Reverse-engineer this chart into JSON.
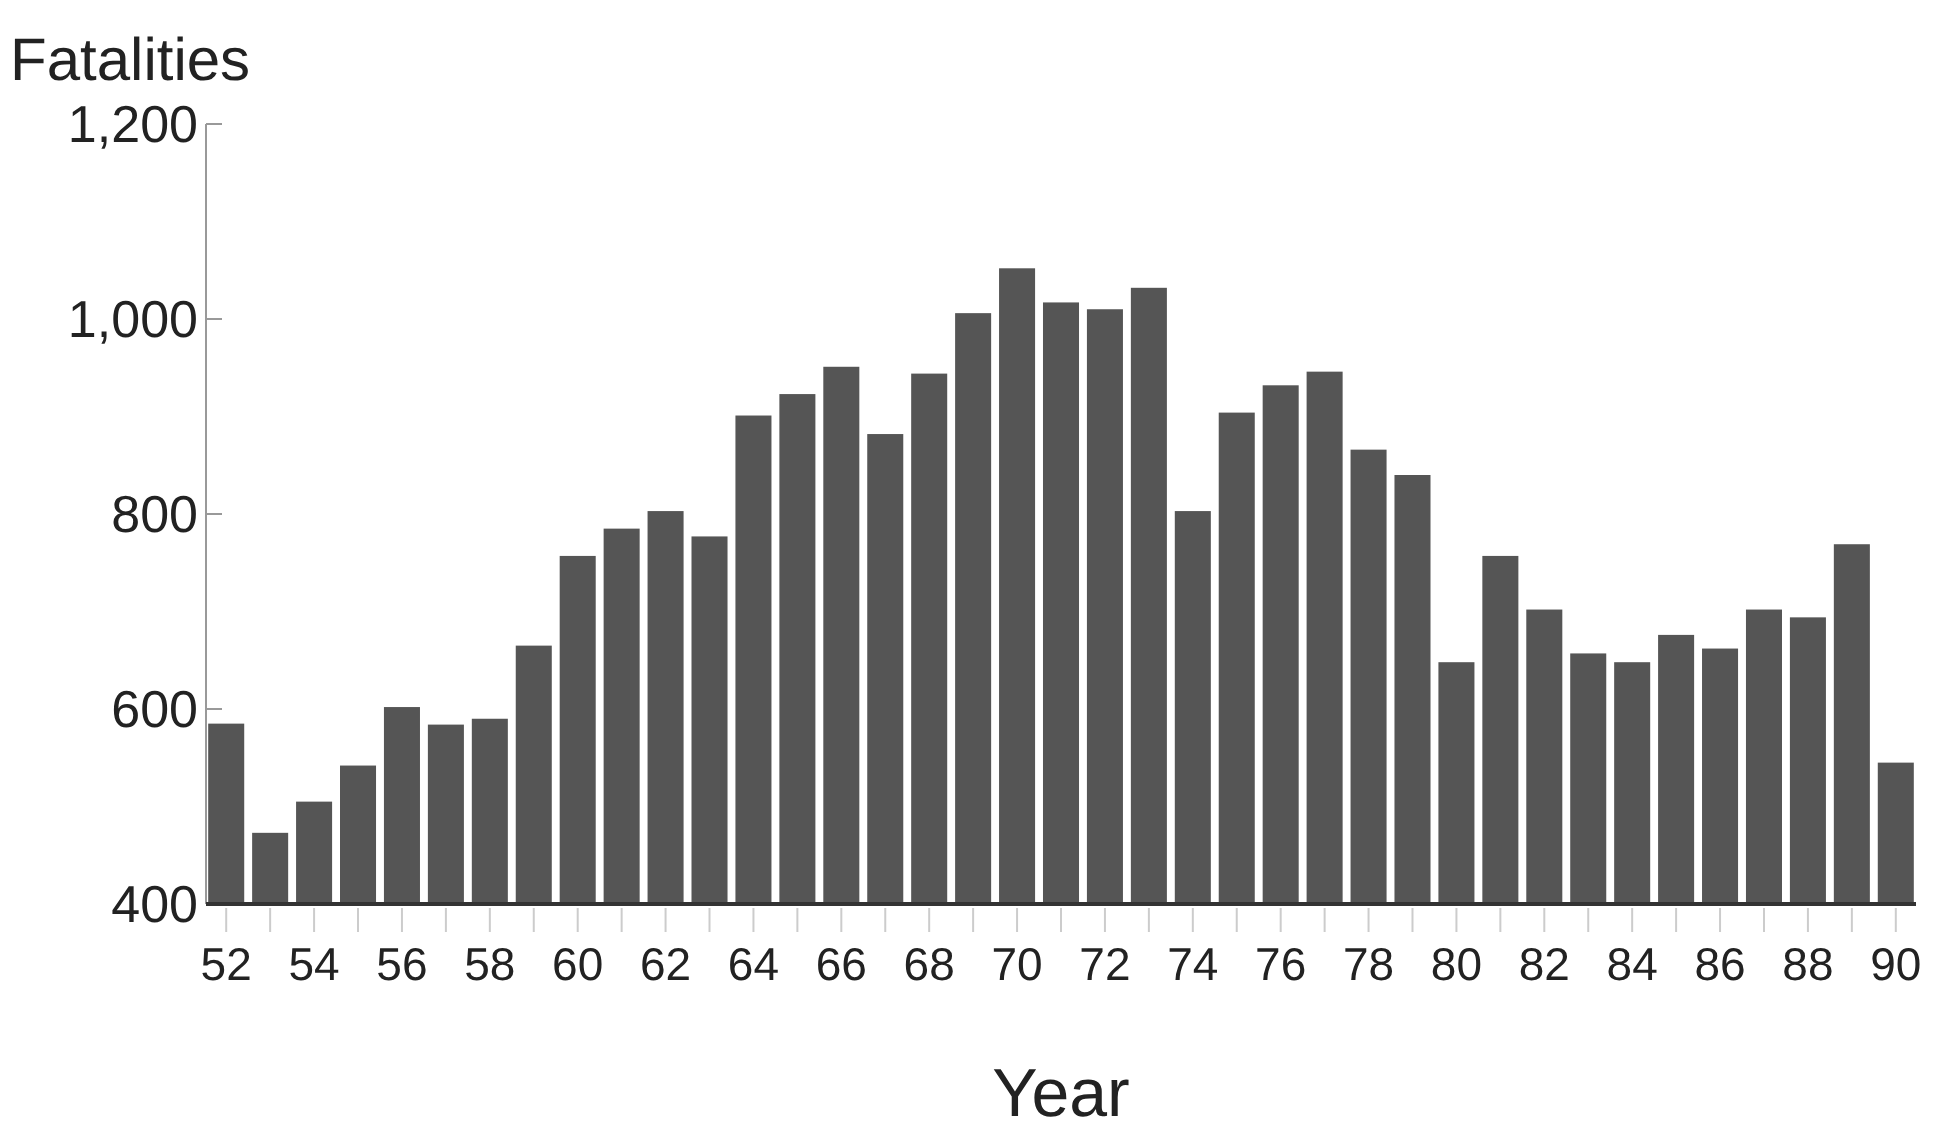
{
  "chart_data": {
    "type": "bar",
    "ylabel": "Fatalities",
    "xlabel": "Year",
    "categories": [
      "52",
      null,
      "54",
      null,
      "56",
      null,
      "58",
      null,
      "60",
      null,
      "62",
      null,
      "64",
      null,
      "66",
      null,
      "68",
      null,
      "70",
      null,
      "72",
      null,
      "74",
      null,
      "76",
      null,
      "78",
      null,
      "80",
      null,
      "82",
      null,
      "84",
      null,
      "86",
      null,
      "88",
      null,
      "90"
    ],
    "values": [
      585,
      473,
      505,
      542,
      602,
      584,
      590,
      665,
      757,
      785,
      803,
      777,
      901,
      923,
      951,
      882,
      944,
      1006,
      1052,
      1017,
      1010,
      1032,
      803,
      904,
      932,
      946,
      866,
      840,
      648,
      757,
      702,
      657,
      648,
      676,
      662,
      702,
      694,
      769,
      545
    ],
    "color": "#555555",
    "ylim": [
      400,
      1200
    ],
    "yticks": [
      400,
      600,
      800,
      {
        "value": 1000,
        "label": "1,000"
      },
      {
        "value": 1200,
        "label": "1,200"
      }
    ],
    "grid": false
  }
}
